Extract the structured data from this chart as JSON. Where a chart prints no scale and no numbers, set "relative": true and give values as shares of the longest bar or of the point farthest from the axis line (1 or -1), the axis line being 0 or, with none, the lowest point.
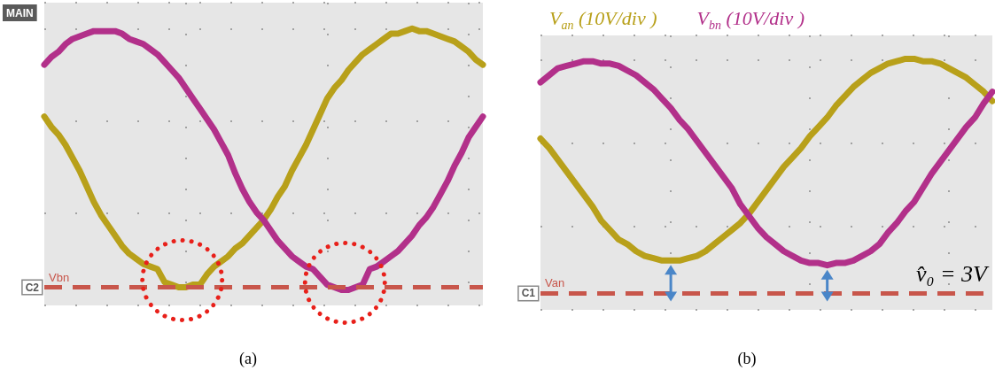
{
  "chart_data": [
    {
      "type": "line",
      "title": "(a)",
      "subtitle": "MAIN",
      "relative": true,
      "grid": true,
      "categories": [
        null,
        null,
        null,
        null,
        null,
        null,
        null,
        null,
        null,
        null,
        null,
        null,
        null,
        null,
        null,
        null,
        null,
        null,
        null,
        null,
        null,
        null,
        null,
        null,
        null,
        null,
        null,
        null,
        null,
        null,
        null,
        null,
        null,
        null,
        null,
        null,
        null,
        null,
        null,
        null,
        null,
        null,
        null,
        null,
        null,
        null,
        null,
        null,
        null,
        null,
        null,
        null,
        null,
        null,
        null,
        null,
        null,
        null,
        null,
        null,
        null,
        null,
        null
      ],
      "series": [
        {
          "color": "#b8a01a",
          "values": [
            0.66,
            0.62,
            0.59,
            0.55,
            0.5,
            0.45,
            0.39,
            0.33,
            0.28,
            0.24,
            0.2,
            0.16,
            0.13,
            0.11,
            0.09,
            0.08,
            0.07,
            0.02,
            0.01,
            0,
            0,
            0.01,
            0.01,
            0.05,
            0.08,
            0.1,
            0.12,
            0.15,
            0.17,
            0.2,
            0.23,
            0.26,
            0.3,
            0.35,
            0.39,
            0.45,
            0.5,
            0.55,
            0.61,
            0.67,
            0.73,
            0.77,
            0.8,
            0.84,
            0.87,
            0.9,
            0.92,
            0.94,
            0.96,
            0.98,
            0.98,
            0.99,
            1.0,
            0.99,
            0.99,
            0.98,
            0.97,
            0.96,
            0.95,
            0.93,
            0.91,
            0.88,
            0.86
          ]
        },
        {
          "color": "#b2308a",
          "values": [
            0.86,
            0.89,
            0.91,
            0.94,
            0.96,
            0.97,
            0.98,
            0.99,
            0.99,
            0.99,
            0.99,
            0.98,
            0.96,
            0.95,
            0.94,
            0.92,
            0.9,
            0.87,
            0.84,
            0.81,
            0.77,
            0.73,
            0.69,
            0.65,
            0.61,
            0.56,
            0.51,
            0.44,
            0.38,
            0.33,
            0.29,
            0.26,
            0.22,
            0.18,
            0.15,
            0.12,
            0.1,
            0.08,
            0.07,
            0.04,
            0.01,
            0,
            -0.01,
            -0.01,
            0,
            0.01,
            0.07,
            0.08,
            0.1,
            0.12,
            0.14,
            0.17,
            0.2,
            0.24,
            0.27,
            0.31,
            0.36,
            0.41,
            0.47,
            0.52,
            0.58,
            0.62,
            0.66
          ]
        }
      ],
      "ref_lines": [
        {
          "axis": "y",
          "value": 0,
          "label": "Vbn",
          "color": "#c8564b",
          "line_style": "dashed"
        }
      ],
      "annotations": [
        {
          "text": "C2",
          "y": 0
        }
      ]
    },
    {
      "type": "line",
      "title": "(b)",
      "relative": true,
      "grid": true,
      "legend": "top left",
      "categories": [
        null,
        null,
        null,
        null,
        null,
        null,
        null,
        null,
        null,
        null,
        null,
        null,
        null,
        null,
        null,
        null,
        null,
        null,
        null,
        null,
        null,
        null,
        null,
        null,
        null,
        null,
        null,
        null,
        null,
        null,
        null,
        null,
        null,
        null,
        null,
        null,
        null,
        null,
        null,
        null,
        null,
        null,
        null,
        null,
        null,
        null,
        null,
        null,
        null,
        null,
        null,
        null,
        null
      ],
      "series": [
        {
          "name": "V$_{an}$ (10V/div )",
          "color": "#b8a01a",
          "values": [
            0.66,
            0.62,
            0.57,
            0.52,
            0.47,
            0.42,
            0.37,
            0.31,
            0.27,
            0.23,
            0.21,
            0.18,
            0.16,
            0.15,
            0.14,
            0.14,
            0.14,
            0.15,
            0.16,
            0.18,
            0.21,
            0.24,
            0.27,
            0.3,
            0.34,
            0.39,
            0.44,
            0.49,
            0.54,
            0.58,
            0.62,
            0.67,
            0.71,
            0.75,
            0.8,
            0.84,
            0.88,
            0.91,
            0.94,
            0.96,
            0.98,
            0.99,
            1.0,
            1.0,
            0.99,
            0.99,
            0.98,
            0.96,
            0.94,
            0.92,
            0.89,
            0.86,
            0.82
          ]
        },
        {
          "name": "V$_{bn}$ (10V/div )",
          "color": "#b2308a",
          "values": [
            0.9,
            0.93,
            0.96,
            0.97,
            0.98,
            0.99,
            0.99,
            0.98,
            0.98,
            0.97,
            0.95,
            0.93,
            0.9,
            0.87,
            0.83,
            0.79,
            0.74,
            0.7,
            0.65,
            0.6,
            0.55,
            0.5,
            0.45,
            0.38,
            0.33,
            0.28,
            0.24,
            0.21,
            0.18,
            0.16,
            0.14,
            0.13,
            0.13,
            0.12,
            0.13,
            0.13,
            0.14,
            0.16,
            0.18,
            0.21,
            0.26,
            0.3,
            0.35,
            0.39,
            0.45,
            0.51,
            0.56,
            0.61,
            0.66,
            0.71,
            0.75,
            0.81,
            0.86
          ]
        }
      ],
      "ref_lines": [
        {
          "axis": "y",
          "value": 0,
          "label": "Van",
          "color": "#c8564b",
          "line_style": "dashed"
        }
      ],
      "annotations": [
        {
          "text": "C1",
          "y": 0
        },
        "v̂₀ = 3V"
      ]
    }
  ]
}
